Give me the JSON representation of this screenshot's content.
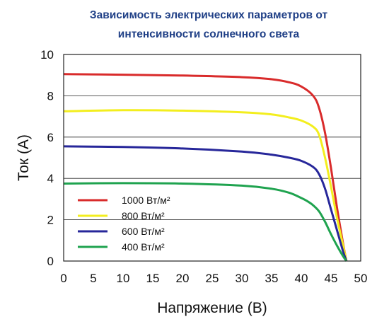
{
  "chart_data": {
    "type": "line",
    "title": [
      "Зависимость электрических параметров от",
      "интенсивности солнечного света"
    ],
    "xlabel": "Напряжение (В)",
    "ylabel": "Ток (А)",
    "xlim": [
      0,
      50
    ],
    "ylim": [
      0,
      10
    ],
    "xticks": [
      "0",
      "5",
      "10",
      "15",
      "20",
      "25",
      "30",
      "35",
      "40",
      "45",
      "50"
    ],
    "yticks": [
      "0",
      "2",
      "4",
      "6",
      "8",
      "10"
    ],
    "grid": "horizontal",
    "legend_position": "bottom-left",
    "series": [
      {
        "name": "1000 Вт/м²",
        "color": "#d92b2b",
        "x": [
          0,
          10,
          20,
          30,
          35,
          38,
          40,
          42,
          43,
          44,
          45,
          46,
          47,
          47.6
        ],
        "y": [
          9.05,
          9.02,
          8.98,
          8.9,
          8.8,
          8.65,
          8.45,
          8.0,
          7.4,
          6.2,
          4.5,
          2.6,
          0.9,
          0
        ]
      },
      {
        "name": "800 Вт/м²",
        "color": "#f3ee1e",
        "x": [
          0,
          10,
          20,
          30,
          35,
          38,
          40,
          42,
          43,
          44,
          45,
          46,
          47,
          47.6
        ],
        "y": [
          7.25,
          7.3,
          7.28,
          7.2,
          7.1,
          6.95,
          6.8,
          6.5,
          6.1,
          5.0,
          3.6,
          2.1,
          0.8,
          0
        ]
      },
      {
        "name": "600 Вт/м²",
        "color": "#27279a",
        "x": [
          0,
          10,
          20,
          30,
          35,
          38,
          40,
          42,
          43,
          44,
          45,
          46,
          47,
          47.6
        ],
        "y": [
          5.55,
          5.52,
          5.45,
          5.3,
          5.15,
          5.0,
          4.85,
          4.55,
          4.2,
          3.5,
          2.5,
          1.5,
          0.5,
          0
        ]
      },
      {
        "name": "400 Вт/м²",
        "color": "#1fa34f",
        "x": [
          0,
          10,
          20,
          30,
          35,
          38,
          40,
          41,
          42,
          43,
          44,
          45,
          46,
          47,
          47.6
        ],
        "y": [
          3.75,
          3.77,
          3.75,
          3.65,
          3.5,
          3.3,
          3.05,
          2.9,
          2.7,
          2.4,
          1.9,
          1.3,
          0.75,
          0.25,
          0
        ]
      }
    ]
  }
}
